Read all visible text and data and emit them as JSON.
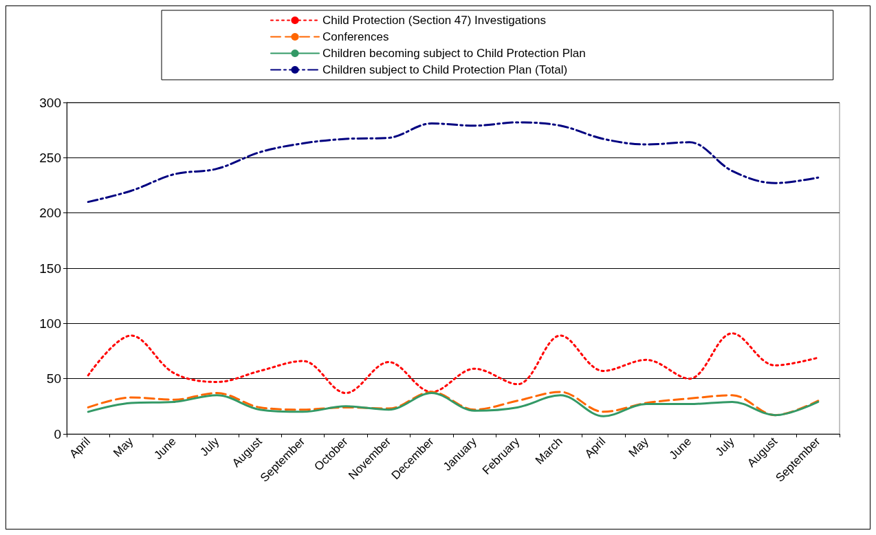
{
  "chart_data": {
    "type": "line",
    "categories": [
      "April",
      "May",
      "June",
      "July",
      "August",
      "September",
      "October",
      "November",
      "December",
      "January",
      "February",
      "March",
      "April",
      "May",
      "June",
      "July",
      "August",
      "September"
    ],
    "series": [
      {
        "name": "Child Protection (Section 47) Investigations",
        "color": "#ff0000",
        "line_style": "dotted",
        "values": [
          53,
          89,
          55,
          47,
          57,
          66,
          37,
          65,
          38,
          59,
          45,
          89,
          57,
          67,
          50,
          91,
          62,
          69
        ]
      },
      {
        "name": "Conferences",
        "color": "#ff6600",
        "line_style": "dashed",
        "values": [
          24,
          33,
          31,
          37,
          24,
          22,
          24,
          23,
          38,
          22,
          30,
          38,
          20,
          28,
          32,
          35,
          17,
          30
        ]
      },
      {
        "name": "Children becoming subject to Child Protection Plan",
        "color": "#339966",
        "line_style": "solid",
        "values": [
          20,
          28,
          29,
          35,
          22,
          20,
          25,
          22,
          37,
          21,
          24,
          35,
          16,
          27,
          27,
          29,
          17,
          29
        ]
      },
      {
        "name": "Children subject to Child Protection Plan (Total)",
        "color": "#000080",
        "line_style": "dashdot",
        "values": [
          210,
          220,
          235,
          240,
          255,
          263,
          267,
          268,
          281,
          279,
          282,
          279,
          267,
          262,
          264,
          238,
          227,
          232
        ]
      }
    ],
    "ylim": [
      0,
      300
    ],
    "yticks": [
      0,
      50,
      100,
      150,
      200,
      250,
      300
    ],
    "grid": "y",
    "legend": "top",
    "marker": "none"
  }
}
